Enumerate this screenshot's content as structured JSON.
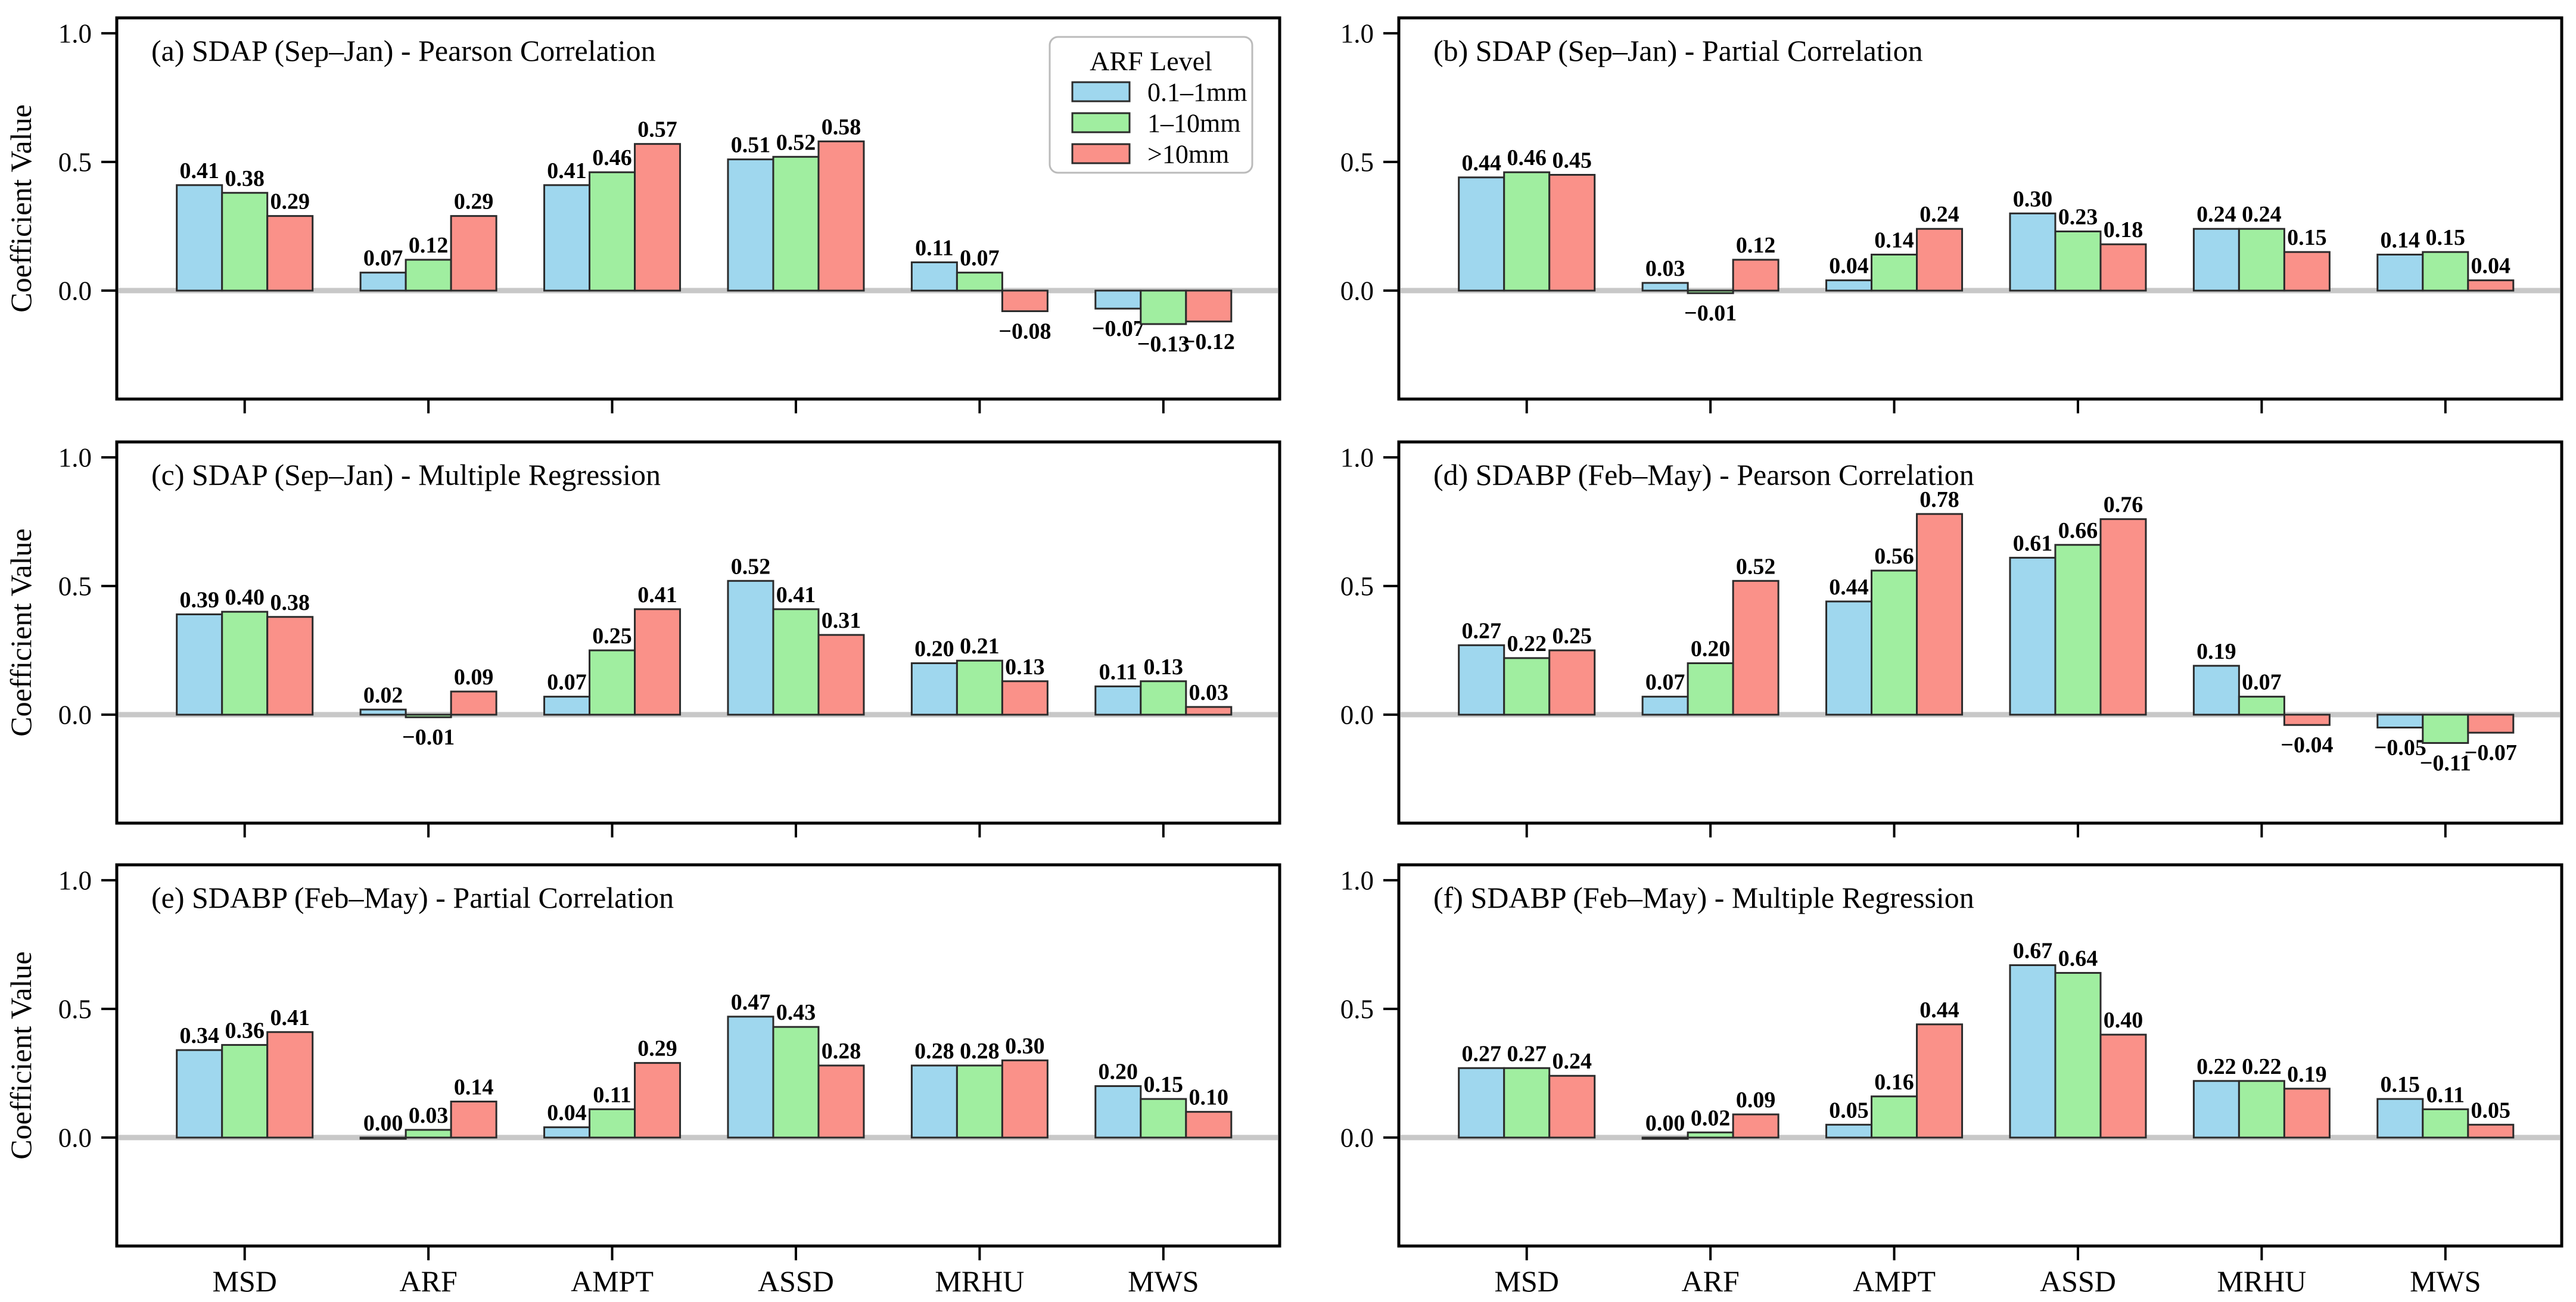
{
  "figure": {
    "ylabel": "Coefficient Value",
    "ytick_labels": [
      "1.0",
      "0.5",
      "0.0"
    ],
    "ytick_values": [
      1.0,
      0.5,
      0.0
    ],
    "categories": [
      "MSD",
      "ARF",
      "AMPT",
      "ASSD",
      "MRHU",
      "MWS"
    ],
    "legend": {
      "title": "ARF Level",
      "position": "upper-right-of-panel-a",
      "entries": [
        {
          "label": "0.1–1mm",
          "color": "#9FD7EE"
        },
        {
          "label": "1–10mm",
          "color": "#A0EEA0"
        },
        {
          "label": ">10mm",
          "color": "#FA9189"
        }
      ]
    },
    "style_colors": {
      "bar_edge": "#2B2B2B",
      "zero_line": "#C8C8C8",
      "axis": "#000000",
      "legend_border": "#BBBBBB",
      "background": "#FFFFFF"
    }
  },
  "chart_data": [
    {
      "panel": "a",
      "type": "bar",
      "title": "(a) SDAP (Sep–Jan) - Pearson Correlation",
      "categories": [
        "MSD",
        "ARF",
        "AMPT",
        "ASSD",
        "MRHU",
        "MWS"
      ],
      "series": [
        {
          "name": "0.1–1mm",
          "values": [
            0.41,
            0.07,
            0.41,
            0.51,
            0.11,
            -0.07
          ]
        },
        {
          "name": "1–10mm",
          "values": [
            0.38,
            0.12,
            0.46,
            0.52,
            0.07,
            -0.13
          ]
        },
        {
          "name": ">10mm",
          "values": [
            0.29,
            0.29,
            0.57,
            0.58,
            -0.08,
            -0.12
          ]
        }
      ],
      "ylim": [
        -0.42,
        1.06
      ],
      "yticks": [
        1.0,
        0.5,
        0.0
      ],
      "zero_line": true,
      "value_labels": true,
      "grid": false,
      "has_legend": true
    },
    {
      "panel": "b",
      "type": "bar",
      "title": "(b) SDAP (Sep–Jan) - Partial Correlation",
      "categories": [
        "MSD",
        "ARF",
        "AMPT",
        "ASSD",
        "MRHU",
        "MWS"
      ],
      "series": [
        {
          "name": "0.1–1mm",
          "values": [
            0.44,
            0.03,
            0.04,
            0.3,
            0.24,
            0.14
          ]
        },
        {
          "name": "1–10mm",
          "values": [
            0.46,
            -0.01,
            0.14,
            0.23,
            0.24,
            0.15
          ]
        },
        {
          "name": ">10mm",
          "values": [
            0.45,
            0.12,
            0.24,
            0.18,
            0.15,
            0.04
          ]
        }
      ],
      "ylim": [
        -0.42,
        1.06
      ],
      "yticks": [
        1.0,
        0.5,
        0.0
      ],
      "zero_line": true,
      "value_labels": true,
      "grid": false,
      "has_legend": false
    },
    {
      "panel": "c",
      "type": "bar",
      "title": "(c) SDAP (Sep–Jan) - Multiple Regression",
      "categories": [
        "MSD",
        "ARF",
        "AMPT",
        "ASSD",
        "MRHU",
        "MWS"
      ],
      "series": [
        {
          "name": "0.1–1mm",
          "values": [
            0.39,
            0.02,
            0.07,
            0.52,
            0.2,
            0.11
          ]
        },
        {
          "name": "1–10mm",
          "values": [
            0.4,
            -0.01,
            0.25,
            0.41,
            0.21,
            0.13
          ]
        },
        {
          "name": ">10mm",
          "values": [
            0.38,
            0.09,
            0.41,
            0.31,
            0.13,
            0.03
          ]
        }
      ],
      "ylim": [
        -0.42,
        1.06
      ],
      "yticks": [
        1.0,
        0.5,
        0.0
      ],
      "zero_line": true,
      "value_labels": true,
      "grid": false,
      "has_legend": false
    },
    {
      "panel": "d",
      "type": "bar",
      "title": "(d) SDABP (Feb–May) - Pearson Correlation",
      "categories": [
        "MSD",
        "ARF",
        "AMPT",
        "ASSD",
        "MRHU",
        "MWS"
      ],
      "series": [
        {
          "name": "0.1–1mm",
          "values": [
            0.27,
            0.07,
            0.44,
            0.61,
            0.19,
            -0.05
          ]
        },
        {
          "name": "1–10mm",
          "values": [
            0.22,
            0.2,
            0.56,
            0.66,
            0.07,
            -0.11
          ]
        },
        {
          "name": ">10mm",
          "values": [
            0.25,
            0.52,
            0.78,
            0.76,
            -0.04,
            -0.07
          ]
        }
      ],
      "ylim": [
        -0.42,
        1.06
      ],
      "yticks": [
        1.0,
        0.5,
        0.0
      ],
      "zero_line": true,
      "value_labels": true,
      "grid": false,
      "has_legend": false
    },
    {
      "panel": "e",
      "type": "bar",
      "title": "(e) SDABP (Feb–May) - Partial Correlation",
      "categories": [
        "MSD",
        "ARF",
        "AMPT",
        "ASSD",
        "MRHU",
        "MWS"
      ],
      "series": [
        {
          "name": "0.1–1mm",
          "values": [
            0.34,
            0.0,
            0.04,
            0.47,
            0.28,
            0.2
          ]
        },
        {
          "name": "1–10mm",
          "values": [
            0.36,
            0.03,
            0.11,
            0.43,
            0.28,
            0.15
          ]
        },
        {
          "name": ">10mm",
          "values": [
            0.41,
            0.14,
            0.29,
            0.28,
            0.3,
            0.1
          ]
        }
      ],
      "ylim": [
        -0.42,
        1.06
      ],
      "yticks": [
        1.0,
        0.5,
        0.0
      ],
      "zero_line": true,
      "value_labels": true,
      "grid": false,
      "has_legend": false
    },
    {
      "panel": "f",
      "type": "bar",
      "title": "(f) SDABP (Feb–May) - Multiple Regression",
      "categories": [
        "MSD",
        "ARF",
        "AMPT",
        "ASSD",
        "MRHU",
        "MWS"
      ],
      "series": [
        {
          "name": "0.1–1mm",
          "values": [
            0.27,
            0.0,
            0.05,
            0.67,
            0.22,
            0.15
          ]
        },
        {
          "name": "1–10mm",
          "values": [
            0.27,
            0.02,
            0.16,
            0.64,
            0.22,
            0.11
          ]
        },
        {
          "name": ">10mm",
          "values": [
            0.24,
            0.09,
            0.44,
            0.4,
            0.19,
            0.05
          ]
        }
      ],
      "ylim": [
        -0.42,
        1.06
      ],
      "yticks": [
        1.0,
        0.5,
        0.0
      ],
      "zero_line": true,
      "value_labels": true,
      "grid": false,
      "has_legend": false
    }
  ]
}
